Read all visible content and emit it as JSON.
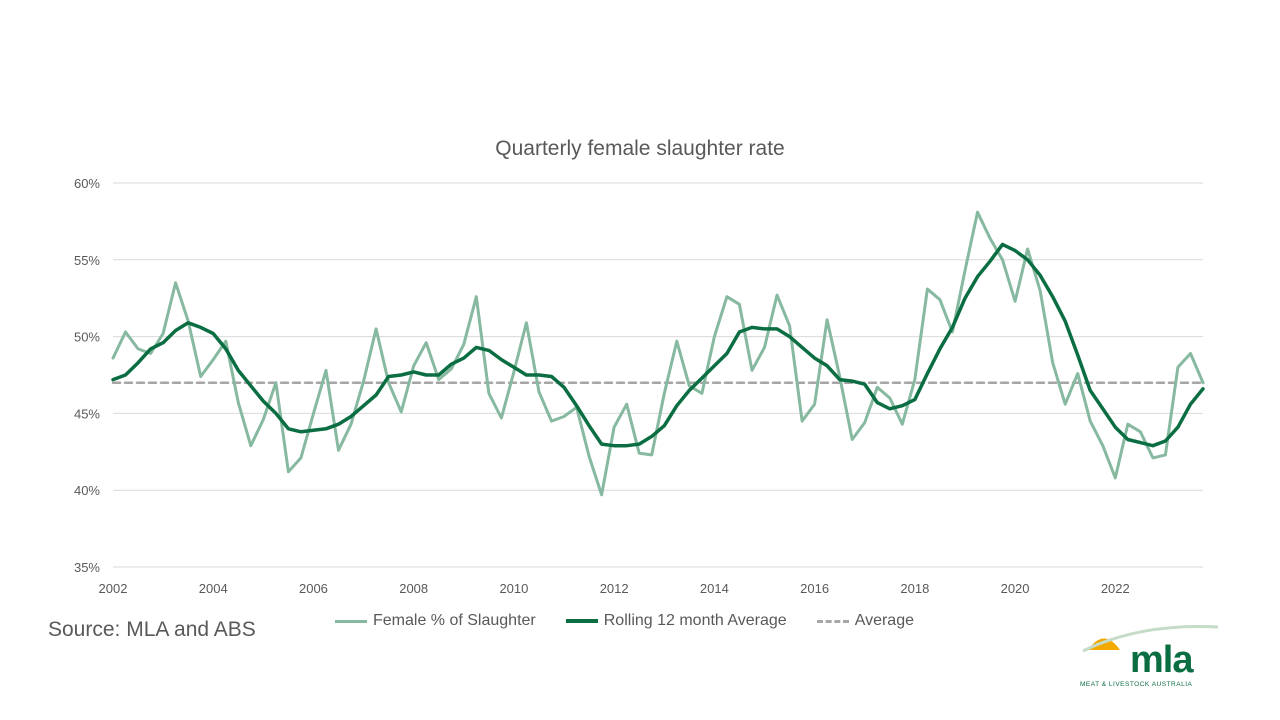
{
  "source_text": "Source: MLA and ABS",
  "logo": {
    "wordmark": "mla",
    "tagline": "MEAT & LIVESTOCK AUSTRALIA"
  },
  "colors": {
    "female": "#86b9a0",
    "rolling": "#0a6e42",
    "average": "#a6a6a6",
    "grid": "#d9d9d9",
    "text": "#595959"
  },
  "chart_data": {
    "type": "line",
    "title": "Quarterly female slaughter rate",
    "xlabel": "",
    "ylabel": "",
    "xlim": [
      2002,
      2023.75
    ],
    "ylim": [
      35,
      60
    ],
    "y_ticks": [
      35,
      40,
      45,
      50,
      55,
      60
    ],
    "y_tick_labels": [
      "35%",
      "40%",
      "45%",
      "50%",
      "55%",
      "60%"
    ],
    "x_ticks": [
      2002,
      2004,
      2006,
      2008,
      2010,
      2012,
      2014,
      2016,
      2018,
      2020,
      2022
    ],
    "x_tick_labels": [
      "2002",
      "2004",
      "2006",
      "2008",
      "2010",
      "2012",
      "2014",
      "2016",
      "2018",
      "2020",
      "2022"
    ],
    "grid": "horizontal",
    "legend_position": "bottom",
    "series": [
      {
        "name": "Female % of Slaughter",
        "x": [
          2002.0,
          2002.25,
          2002.5,
          2002.75,
          2003.0,
          2003.25,
          2003.5,
          2003.75,
          2004.0,
          2004.25,
          2004.5,
          2004.75,
          2005.0,
          2005.25,
          2005.5,
          2005.75,
          2006.0,
          2006.25,
          2006.5,
          2006.75,
          2007.0,
          2007.25,
          2007.5,
          2007.75,
          2008.0,
          2008.25,
          2008.5,
          2008.75,
          2009.0,
          2009.25,
          2009.5,
          2009.75,
          2010.0,
          2010.25,
          2010.5,
          2010.75,
          2011.0,
          2011.25,
          2011.5,
          2011.75,
          2012.0,
          2012.25,
          2012.5,
          2012.75,
          2013.0,
          2013.25,
          2013.5,
          2013.75,
          2014.0,
          2014.25,
          2014.5,
          2014.75,
          2015.0,
          2015.25,
          2015.5,
          2015.75,
          2016.0,
          2016.25,
          2016.5,
          2016.75,
          2017.0,
          2017.25,
          2017.5,
          2017.75,
          2018.0,
          2018.25,
          2018.5,
          2018.75,
          2019.0,
          2019.25,
          2019.5,
          2019.75,
          2020.0,
          2020.25,
          2020.5,
          2020.75,
          2021.0,
          2021.25,
          2021.5,
          2021.75,
          2022.0,
          2022.25,
          2022.5,
          2022.75,
          2023.0,
          2023.25,
          2023.5,
          2023.75
        ],
        "values": [
          48.6,
          50.3,
          49.2,
          48.9,
          50.2,
          53.5,
          51.0,
          47.4,
          48.5,
          49.7,
          45.7,
          42.9,
          44.6,
          47.0,
          41.2,
          42.1,
          45.0,
          47.8,
          42.6,
          44.3,
          47.1,
          50.5,
          47.0,
          45.1,
          48.1,
          49.6,
          47.2,
          47.9,
          49.5,
          52.6,
          46.3,
          44.7,
          47.7,
          50.9,
          46.4,
          44.5,
          44.8,
          45.4,
          42.2,
          39.7,
          44.1,
          45.6,
          42.4,
          42.3,
          46.3,
          49.7,
          46.8,
          46.3,
          50.0,
          52.6,
          52.1,
          47.8,
          49.3,
          52.7,
          50.7,
          44.5,
          45.6,
          51.1,
          47.4,
          43.3,
          44.4,
          46.7,
          46.0,
          44.3,
          47.2,
          53.1,
          52.4,
          50.3,
          54.3,
          58.1,
          56.4,
          55.0,
          52.3,
          55.7,
          53.0,
          48.3,
          45.6,
          47.6,
          44.5,
          42.9,
          40.8,
          44.3,
          43.8,
          42.1,
          42.3,
          48.0,
          48.9,
          47.0
        ]
      },
      {
        "name": "Rolling 12 month Average",
        "x": [
          2002.0,
          2002.25,
          2002.5,
          2002.75,
          2003.0,
          2003.25,
          2003.5,
          2003.75,
          2004.0,
          2004.25,
          2004.5,
          2004.75,
          2005.0,
          2005.25,
          2005.5,
          2005.75,
          2006.0,
          2006.25,
          2006.5,
          2006.75,
          2007.0,
          2007.25,
          2007.5,
          2007.75,
          2008.0,
          2008.25,
          2008.5,
          2008.75,
          2009.0,
          2009.25,
          2009.5,
          2009.75,
          2010.0,
          2010.25,
          2010.5,
          2010.75,
          2011.0,
          2011.25,
          2011.5,
          2011.75,
          2012.0,
          2012.25,
          2012.5,
          2012.75,
          2013.0,
          2013.25,
          2013.5,
          2013.75,
          2014.0,
          2014.25,
          2014.5,
          2014.75,
          2015.0,
          2015.25,
          2015.5,
          2015.75,
          2016.0,
          2016.25,
          2016.5,
          2016.75,
          2017.0,
          2017.25,
          2017.5,
          2017.75,
          2018.0,
          2018.25,
          2018.5,
          2018.75,
          2019.0,
          2019.25,
          2019.5,
          2019.75,
          2020.0,
          2020.25,
          2020.5,
          2020.75,
          2021.0,
          2021.25,
          2021.5,
          2021.75,
          2022.0,
          2022.25,
          2022.5,
          2022.75,
          2023.0,
          2023.25,
          2023.5,
          2023.75
        ],
        "values": [
          47.2,
          47.5,
          48.3,
          49.2,
          49.6,
          50.4,
          50.9,
          50.6,
          50.2,
          49.2,
          47.8,
          46.8,
          45.8,
          45.0,
          44.0,
          43.8,
          43.9,
          44.0,
          44.3,
          44.8,
          45.5,
          46.2,
          47.4,
          47.5,
          47.7,
          47.5,
          47.5,
          48.2,
          48.6,
          49.3,
          49.1,
          48.5,
          48.0,
          47.5,
          47.5,
          47.4,
          46.7,
          45.5,
          44.2,
          43.0,
          42.9,
          42.9,
          43.0,
          43.5,
          44.2,
          45.5,
          46.5,
          47.3,
          48.1,
          48.9,
          50.3,
          50.6,
          50.5,
          50.5,
          50.0,
          49.3,
          48.6,
          48.1,
          47.2,
          47.1,
          46.9,
          45.7,
          45.3,
          45.5,
          45.9,
          47.6,
          49.2,
          50.6,
          52.5,
          53.9,
          54.9,
          56.0,
          55.6,
          55.0,
          54.0,
          52.6,
          51.0,
          48.8,
          46.5,
          45.3,
          44.1,
          43.3,
          43.1,
          42.9,
          43.2,
          44.1,
          45.6,
          46.6
        ]
      },
      {
        "name": "Average",
        "x": [
          2002.0,
          2023.75
        ],
        "values": [
          47.0,
          47.0
        ]
      }
    ]
  },
  "legend": {
    "items": [
      {
        "label": "Female % of Slaughter"
      },
      {
        "label": "Rolling 12 month Average"
      },
      {
        "label": "Average"
      }
    ]
  }
}
